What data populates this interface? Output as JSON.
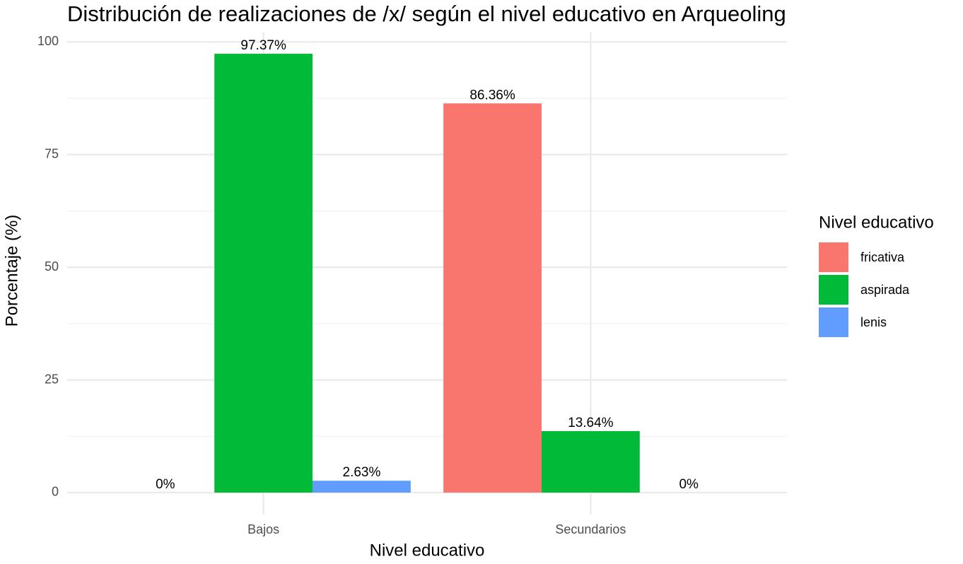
{
  "chart_data": {
    "type": "bar",
    "title": "Distribución de realizaciones de /x/ según el nivel educativo en Arqueoling",
    "x_label": "Nivel educativo",
    "y_label": "Porcentaje (%)",
    "legend_title": "Nivel educativo",
    "legend_position": "right",
    "categories": [
      "Bajos",
      "Secundarios"
    ],
    "series": [
      {
        "name": "fricativa",
        "color": "#F8766D",
        "values": [
          0,
          86.36
        ],
        "value_labels": [
          "0%",
          "86.36%"
        ]
      },
      {
        "name": "aspirada",
        "color": "#00BA38",
        "values": [
          97.37,
          13.64
        ],
        "value_labels": [
          "97.37%",
          "13.64%"
        ]
      },
      {
        "name": "lenis",
        "color": "#619CFF",
        "values": [
          2.63,
          0
        ],
        "value_labels": [
          "2.63%",
          "0%"
        ]
      }
    ],
    "ylim": [
      -4.87,
      102.24
    ],
    "yticks": [
      0,
      25,
      50,
      75,
      100
    ],
    "grid": true,
    "minor_grid": true
  }
}
